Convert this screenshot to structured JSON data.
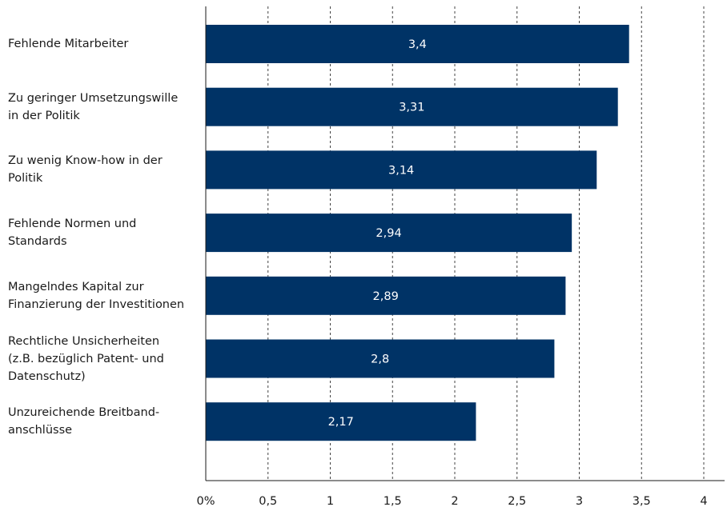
{
  "chart_data": {
    "type": "bar",
    "orientation": "horizontal",
    "categories": [
      [
        "Fehlende Mitarbeiter"
      ],
      [
        "Zu geringer Umsetzungswille",
        "in der Politik"
      ],
      [
        "Zu wenig Know-how in der",
        "Politik"
      ],
      [
        "Fehlende Normen und",
        "Standards"
      ],
      [
        "Mangelndes Kapital zur",
        "Finanzierung der Investitionen"
      ],
      [
        "Rechtliche Unsicherheiten",
        "(z.B. bezüglich Patent- und",
        "Datenschutz)"
      ],
      [
        "Unzureichende Breitband-",
        "anschlüsse"
      ]
    ],
    "values": [
      3.4,
      3.31,
      3.14,
      2.94,
      2.89,
      2.8,
      2.17
    ],
    "value_labels": [
      "3,4",
      "3,31",
      "3,14",
      "2,94",
      "2,89",
      "2,8",
      "2,17"
    ],
    "xlim": [
      0,
      4
    ],
    "x_ticks": [
      0,
      0.5,
      1,
      1.5,
      2,
      2.5,
      3,
      3.5,
      4
    ],
    "x_tick_labels": [
      "0%",
      "0,5",
      "1",
      "1,5",
      "2",
      "2,5",
      "3",
      "3,5",
      "4"
    ],
    "grid": "vertical-dashed",
    "bar_color": "#003366",
    "axis_color": "#1a1a1a",
    "grid_color": "#444444",
    "data_label_color": "#ffffff"
  }
}
